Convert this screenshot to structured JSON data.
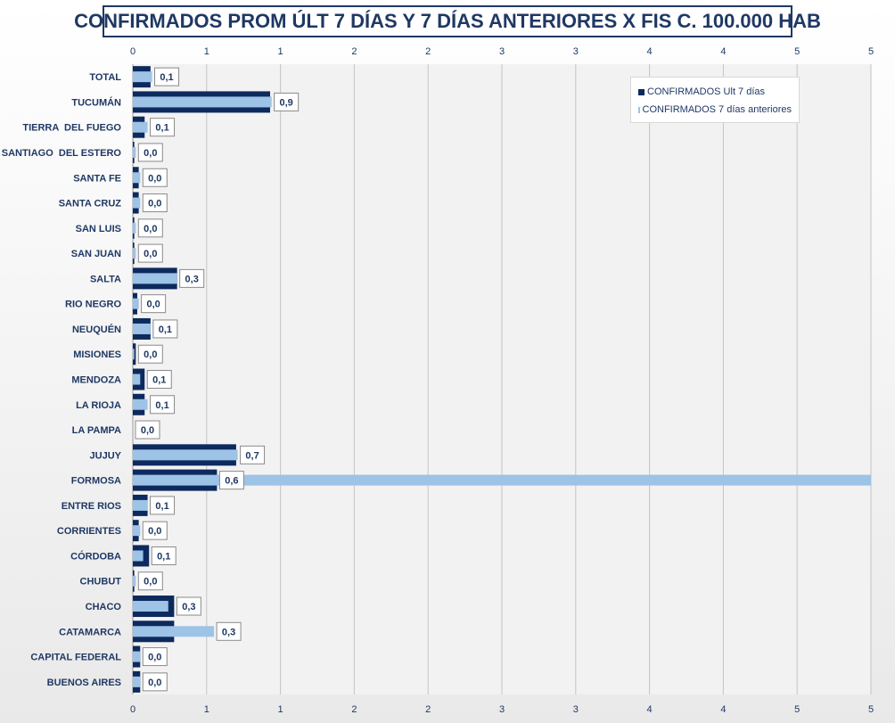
{
  "chart_data": {
    "type": "bar",
    "orientation": "horizontal",
    "title": "CONFIRMADOS PROM ÚLT 7 DÍAS Y 7 DÍAS ANTERIORES X FIS C. 100.000 HAB",
    "categories": [
      "TOTAL",
      "TUCUMÁN",
      "TIERRA  DEL FUEGO",
      "SANTIAGO  DEL ESTERO",
      "SANTA FE",
      "SANTA CRUZ",
      "SAN LUIS",
      "SAN JUAN",
      "SALTA",
      "RIO NEGRO",
      "NEUQUÉN",
      "MISIONES",
      "MENDOZA",
      "LA RIOJA",
      "LA PAMPA",
      "JUJUY",
      "FORMOSA",
      "ENTRE RIOS",
      "CORRIENTES",
      "CÓRDOBA",
      "CHUBUT",
      "CHACO",
      "CATAMARCA",
      "CAPITAL FEDERAL",
      "BUENOS AIRES"
    ],
    "series": [
      {
        "name": "CONFIRMADOS Ult 7 días",
        "color": "#0d2a5e",
        "values": [
          0.12,
          0.93,
          0.08,
          0.01,
          0.04,
          0.04,
          0.01,
          0.01,
          0.3,
          0.03,
          0.12,
          0.02,
          0.08,
          0.08,
          0.0,
          0.7,
          0.57,
          0.1,
          0.04,
          0.11,
          0.01,
          0.28,
          0.28,
          0.05,
          0.05
        ]
      },
      {
        "name": "CONFIRMADOS 7 días anteriores",
        "color": "#9dc3e6",
        "values": [
          0.13,
          0.94,
          0.1,
          0.02,
          0.05,
          0.05,
          0.02,
          0.02,
          0.3,
          0.04,
          0.12,
          0.01,
          0.05,
          0.1,
          0.0,
          0.71,
          5.0,
          0.1,
          0.05,
          0.07,
          0.02,
          0.24,
          0.55,
          0.05,
          0.05
        ]
      }
    ],
    "data_labels": [
      "0,1",
      "0,9",
      "0,1",
      "0,0",
      "0,0",
      "0,0",
      "0,0",
      "0,0",
      "0,3",
      "0,0",
      "0,1",
      "0,0",
      "0,1",
      "0,1",
      "0,0",
      "0,7",
      "0,6",
      "0,1",
      "0,0",
      "0,1",
      "0,0",
      "0,3",
      "0,3",
      "0,0",
      "0,0"
    ],
    "x_ticks": [
      "0",
      "1",
      "1",
      "2",
      "2",
      "3",
      "3",
      "4",
      "4",
      "5",
      "5"
    ],
    "xlim": [
      0,
      5
    ],
    "grid": true,
    "legend_position": "top-right",
    "bar_colors": {
      "ult": "#0d2a5e",
      "anteriores": "#9dc3e6"
    }
  }
}
